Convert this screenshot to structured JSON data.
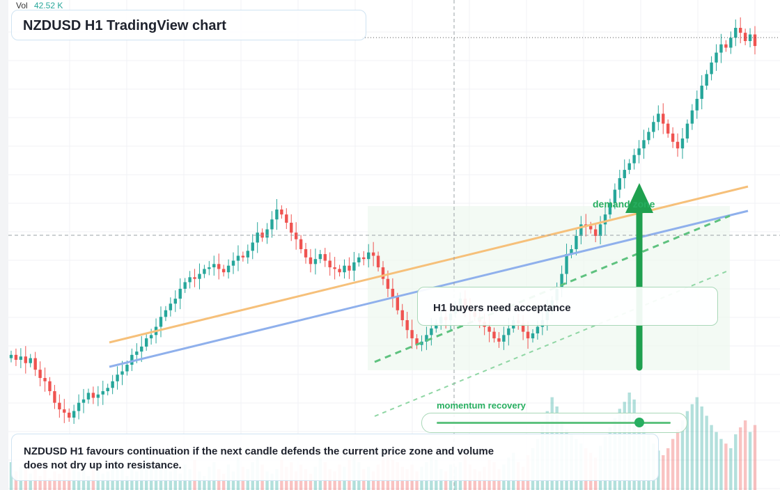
{
  "title": "NZDUSD H1 TradingView chart",
  "volume_label": "Vol",
  "volume_value": "42.52 K",
  "callout": "H1 buyers need acceptance",
  "zone_label": "demand zone",
  "momentum": {
    "label": "momentum recovery",
    "level": 0.87
  },
  "note": "NZDUSD H1 favours continuation if the next candle defends the current price zone and volume does not dry up into resistance.",
  "colors": {
    "up": "#26a69a",
    "down": "#ef5350",
    "accent": "#27ae60",
    "trend_upper": "#f6c07a",
    "trend_lower": "#8fb0ec"
  },
  "chart_data": {
    "type": "candlestick",
    "title": "NZDUSD H1 TradingView chart",
    "grid": true,
    "close_series": [
      78,
      75,
      77,
      73,
      76,
      69,
      64,
      62,
      56,
      49,
      45,
      43,
      40,
      44,
      49,
      51,
      55,
      52,
      54,
      56,
      58,
      62,
      66,
      68,
      72,
      78,
      80,
      83,
      88,
      90,
      95,
      101,
      105,
      109,
      112,
      118,
      122,
      125,
      124,
      127,
      130,
      131,
      133,
      130,
      128,
      132,
      135,
      138,
      137,
      141,
      146,
      152,
      149,
      154,
      160,
      166,
      163,
      158,
      152,
      148,
      142,
      137,
      133,
      136,
      139,
      135,
      131,
      130,
      128,
      132,
      129,
      134,
      137,
      136,
      140,
      138,
      131,
      124,
      118,
      113,
      105,
      99,
      93,
      88,
      84,
      86,
      90,
      94,
      97,
      101,
      99,
      103,
      108,
      112,
      106,
      104,
      101,
      98,
      95,
      92,
      88,
      86,
      90,
      94,
      99,
      97,
      92,
      88,
      91,
      95,
      99,
      105,
      111,
      118,
      127,
      139,
      142,
      150,
      157,
      156,
      154,
      150,
      157,
      163,
      170,
      178,
      185,
      190,
      194,
      199,
      203,
      208,
      213,
      219,
      224,
      218,
      212,
      207,
      203,
      209,
      218,
      226,
      233,
      241,
      248,
      255,
      261,
      266,
      264,
      270,
      276,
      273,
      268,
      272,
      265
    ],
    "volume": [
      12,
      8,
      10,
      9,
      7,
      11,
      6,
      9,
      5,
      8,
      7,
      10,
      14,
      9,
      8,
      12,
      6,
      9,
      11,
      7,
      8,
      10,
      13,
      9,
      6,
      12,
      8,
      11,
      15,
      10,
      9,
      14,
      12,
      8,
      10,
      7,
      11,
      9,
      13,
      8,
      6,
      10,
      12,
      9,
      7,
      11,
      8,
      14,
      10,
      9,
      12,
      16,
      11,
      8,
      7,
      9,
      13,
      10,
      12,
      8,
      11,
      9,
      7,
      10,
      14,
      12,
      9,
      8,
      11,
      10,
      13,
      15,
      12,
      9,
      10,
      8,
      11,
      14,
      16,
      13,
      12,
      10,
      9,
      11,
      8,
      10,
      12,
      14,
      13,
      9,
      8,
      11,
      10,
      12,
      15,
      11,
      9,
      8,
      10,
      13,
      12,
      9,
      11,
      14,
      16,
      12,
      10,
      15,
      18,
      22,
      28,
      34,
      40,
      36,
      30,
      26,
      24,
      22,
      20,
      18,
      16,
      14,
      19,
      23,
      27,
      31,
      35,
      38,
      42,
      39,
      33,
      28,
      24,
      20,
      17,
      15,
      18,
      22,
      26,
      30,
      34,
      37,
      40,
      36,
      32,
      28,
      25,
      22,
      20,
      18,
      24,
      27,
      30,
      25,
      28
    ],
    "trendlines": [
      "upper",
      "lower",
      "channel"
    ]
  }
}
